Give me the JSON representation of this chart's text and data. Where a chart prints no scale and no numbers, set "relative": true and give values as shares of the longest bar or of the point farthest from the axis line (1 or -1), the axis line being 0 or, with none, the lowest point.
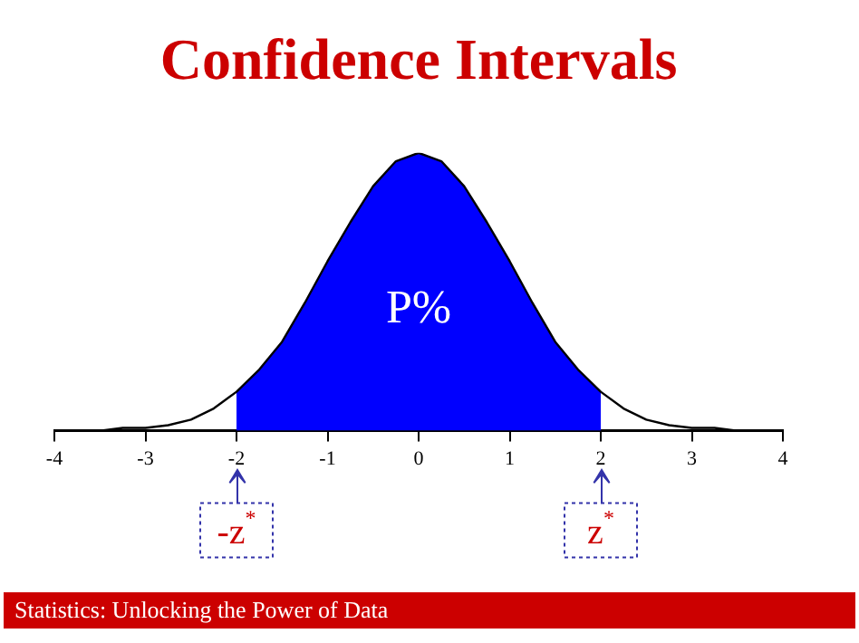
{
  "chart_data": {
    "type": "line",
    "title": "Confidence Intervals",
    "relative": true,
    "xlim": [
      -4,
      4
    ],
    "xticks": [
      -4,
      -3,
      -2,
      -1,
      0,
      1,
      2,
      3,
      4
    ],
    "grid": false,
    "legend": false,
    "marker": "none",
    "line_style": "solid",
    "series": [
      {
        "type": "area",
        "color": "#0000ff",
        "x": [
          -2,
          -1.75,
          -1.5,
          -1.25,
          -1,
          -0.75,
          -0.5,
          -0.25,
          0,
          0.25,
          0.5,
          0.75,
          1,
          1.25,
          1.5,
          1.75,
          2
        ],
        "values": [
          0.14,
          0.22,
          0.32,
          0.46,
          0.61,
          0.75,
          0.88,
          0.97,
          1,
          0.97,
          0.88,
          0.75,
          0.61,
          0.46,
          0.32,
          0.22,
          0.14
        ]
      },
      {
        "type": "line",
        "color": "#000000",
        "x": [
          -4,
          -3.75,
          -3.5,
          -3.25,
          -3,
          -2.75,
          -2.5,
          -2.25,
          -2,
          -1.75,
          -1.5,
          -1.25,
          -1,
          -0.75,
          -0.5,
          -0.25,
          0,
          0.25,
          0.5,
          0.75,
          1,
          1.25,
          1.5,
          1.75,
          2,
          2.25,
          2.5,
          2.75,
          3,
          3.25,
          3.5,
          3.75,
          4
        ],
        "values": [
          0,
          0,
          0,
          0.01,
          0.01,
          0.02,
          0.04,
          0.08,
          0.14,
          0.22,
          0.32,
          0.46,
          0.61,
          0.75,
          0.88,
          0.97,
          1,
          0.97,
          0.88,
          0.75,
          0.61,
          0.46,
          0.32,
          0.22,
          0.14,
          0.08,
          0.04,
          0.02,
          0.01,
          0.01,
          0,
          0,
          0
        ]
      }
    ],
    "annotations": [
      "P%",
      "-z$^{*}$",
      "z$^{*}$",
      "Statistics: Unlocking the Power of Data"
    ]
  }
}
